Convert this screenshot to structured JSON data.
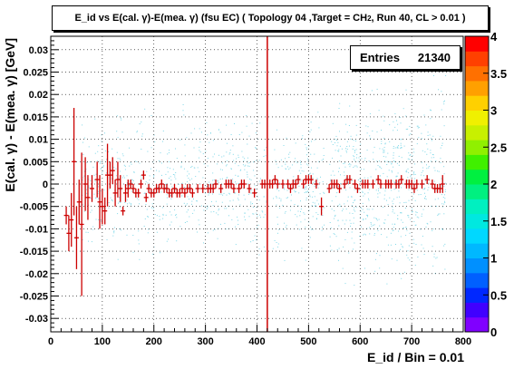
{
  "chart_data": {
    "type": "scatter",
    "title": "E_id vs E(cal. γ)-E(mea. γ) (fsu EC) ( Topology 04 ,Target = CH2, Run 40, CL > 0.01 )",
    "title_parts": {
      "pre": "E_id vs E(cal. γ)-E(mea. γ) (fsu EC) ( Topology 04 ,Target = CH",
      "sub": "2",
      "post": ", Run 40, CL > 0.01 )"
    },
    "xlabel": "E_id / Bin = 0.01",
    "ylabel": "E(cal. γ) - E(mea. γ) [GeV]",
    "xlim": [
      0,
      800
    ],
    "ylim": [
      -0.033,
      0.033
    ],
    "x_ticks": [
      "0",
      "100",
      "200",
      "300",
      "400",
      "500",
      "600",
      "700",
      "800"
    ],
    "x_tick_values": [
      0,
      100,
      200,
      300,
      400,
      500,
      600,
      700,
      800
    ],
    "y_ticks": [
      "0.03",
      "0.025",
      "0.02",
      "0.015",
      "0.01",
      "0.005",
      "0",
      "-0.005",
      "-0.01",
      "-0.015",
      "-0.02",
      "-0.025",
      "-0.03"
    ],
    "y_tick_values": [
      0.03,
      0.025,
      0.02,
      0.015,
      0.01,
      0.005,
      0,
      -0.005,
      -0.01,
      -0.015,
      -0.02,
      -0.025,
      -0.03
    ],
    "grid": true,
    "stats": {
      "label": "Entries",
      "value": "21340"
    },
    "color_scale": {
      "min": 0,
      "max": 4,
      "ticks": [
        "0",
        "0.5",
        "1",
        "1.5",
        "2",
        "2.5",
        "3",
        "3.5",
        "4"
      ],
      "tick_values": [
        0,
        0.5,
        1,
        1.5,
        2,
        2.5,
        3,
        3.5,
        4
      ],
      "colors": [
        "#8000ff",
        "#4000ff",
        "#0028ff",
        "#0060ff",
        "#0090ff",
        "#00b8ff",
        "#00d8ff",
        "#00e8e0",
        "#00f0c0",
        "#00f080",
        "#00f040",
        "#40f000",
        "#90f000",
        "#c8f000",
        "#f0f000",
        "#ffd000",
        "#ffa000",
        "#ff7000",
        "#ff4000",
        "#ff0000"
      ]
    },
    "vertical_line_x": 420,
    "profile": {
      "x": [
        30,
        35,
        40,
        45,
        50,
        55,
        60,
        67,
        72,
        80,
        90,
        95,
        100,
        105,
        110,
        115,
        120,
        125,
        130,
        135,
        140,
        145,
        150,
        155,
        160,
        165,
        170,
        175,
        180,
        185,
        190,
        195,
        200,
        205,
        210,
        215,
        220,
        225,
        230,
        235,
        240,
        245,
        250,
        255,
        260,
        265,
        270,
        275,
        285,
        295,
        305,
        310,
        315,
        320,
        330,
        340,
        345,
        350,
        355,
        365,
        370,
        375,
        385,
        395,
        410,
        415,
        425,
        430,
        435,
        440,
        450,
        460,
        465,
        470,
        475,
        480,
        490,
        495,
        500,
        505,
        515,
        525,
        540,
        545,
        550,
        555,
        560,
        570,
        575,
        580,
        590,
        595,
        605,
        610,
        615,
        625,
        635,
        640,
        650,
        655,
        660,
        670,
        675,
        680,
        690,
        695,
        700,
        705,
        710,
        720,
        730,
        740,
        745,
        750,
        755,
        760
      ],
      "y": [
        -0.007,
        -0.011,
        -0.008,
        0.005,
        -0.012,
        -0.004,
        -0.009,
        0.0,
        -0.003,
        -0.001,
        0.001,
        -0.004,
        -0.005,
        -0.006,
        0.002,
        0.002,
        0.003,
        -0.002,
        0.001,
        -0.001,
        -0.006,
        -0.002,
        -0.001,
        0.0,
        -0.001,
        -0.002,
        -0.002,
        0.0,
        0.002,
        -0.003,
        -0.001,
        -0.002,
        -0.002,
        -0.001,
        -0.001,
        0.0,
        -0.001,
        -0.001,
        -0.002,
        -0.002,
        -0.001,
        -0.002,
        -0.002,
        -0.001,
        -0.002,
        -0.001,
        -0.001,
        -0.002,
        -0.001,
        -0.001,
        -0.001,
        -0.001,
        -0.001,
        0.0,
        -0.001,
        0.0,
        0.0,
        0.0,
        -0.001,
        -0.001,
        0.0,
        0.0,
        -0.001,
        -0.002,
        0.0,
        0.0,
        0.0,
        0.0,
        0.001,
        0.0,
        0.0,
        0.0,
        -0.001,
        0.0,
        0.0,
        0.001,
        0.0,
        0.001,
        0.001,
        0.001,
        0.0,
        -0.005,
        -0.001,
        0.0,
        0.0,
        0.0,
        -0.001,
        0.0,
        0.001,
        0.001,
        0.0,
        -0.001,
        0.0,
        0.0,
        0.0,
        0.0,
        0.001,
        0.0,
        0.0,
        0.0,
        0.0,
        0.0,
        0.0,
        0.001,
        0.0,
        0.0,
        0.0,
        -0.001,
        0.0,
        0.0,
        0.001,
        0.0,
        -0.001,
        -0.001,
        -0.001,
        0.0
      ],
      "err": [
        0.002,
        0.004,
        0.006,
        0.012,
        0.007,
        0.005,
        0.016,
        0.006,
        0.005,
        0.003,
        0.004,
        0.006,
        0.004,
        0.003,
        0.007,
        0.003,
        0.003,
        0.003,
        0.004,
        0.003,
        0.001,
        0.002,
        0.002,
        0.001,
        0.001,
        0.001,
        0.001,
        0.001,
        0.001,
        0.001,
        0.001,
        0.001,
        0.001,
        0.001,
        0.001,
        0.001,
        0.001,
        0.001,
        0.001,
        0.001,
        0.001,
        0.001,
        0.001,
        0.001,
        0.001,
        0.001,
        0.001,
        0.001,
        0.001,
        0.001,
        0.001,
        0.001,
        0.001,
        0.001,
        0.001,
        0.001,
        0.001,
        0.001,
        0.001,
        0.001,
        0.001,
        0.001,
        0.001,
        0.001,
        0.001,
        0.001,
        0.001,
        0.001,
        0.001,
        0.001,
        0.001,
        0.001,
        0.001,
        0.001,
        0.001,
        0.001,
        0.001,
        0.001,
        0.001,
        0.001,
        0.001,
        0.002,
        0.001,
        0.001,
        0.001,
        0.001,
        0.001,
        0.001,
        0.001,
        0.001,
        0.001,
        0.001,
        0.001,
        0.001,
        0.001,
        0.001,
        0.001,
        0.001,
        0.001,
        0.001,
        0.001,
        0.001,
        0.001,
        0.001,
        0.001,
        0.001,
        0.001,
        0.001,
        0.001,
        0.001,
        0.001,
        0.001,
        0.001,
        0.001,
        0.001,
        0.002
      ]
    },
    "colors": {
      "profile": "#cc0000",
      "scatter": "#80d8e8",
      "frame": "#000000",
      "grid": "#000000"
    }
  }
}
